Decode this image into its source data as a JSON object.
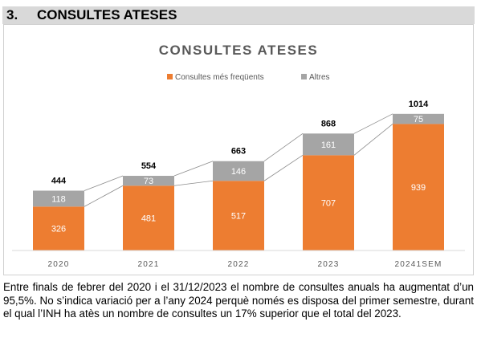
{
  "section": {
    "number": "3.",
    "title": "CONSULTES ATESES"
  },
  "chart_data": {
    "type": "bar",
    "stacked": true,
    "title": "CONSULTES ATESES",
    "categories": [
      "2020",
      "2021",
      "2022",
      "2023",
      "20241SEM"
    ],
    "series": [
      {
        "name": "Consultes més freqüents",
        "color": "#ed7d31",
        "values": [
          326,
          481,
          517,
          707,
          939
        ]
      },
      {
        "name": "Altres",
        "color": "#a5a5a5",
        "values": [
          118,
          73,
          146,
          161,
          75
        ]
      }
    ],
    "totals": [
      "444",
      "554",
      "663",
      "868",
      "1014"
    ],
    "ylim": [
      0,
      1150
    ],
    "grid": false,
    "legend": "top",
    "xlabel": "",
    "ylabel": ""
  },
  "body_text": "Entre finals de febrer del 2020 i el 31/12/2023 el nombre de consultes anuals ha augmentat d’un 95,5%. No s’indica variació per a l’any 2024 perquè només es disposa del primer semestre, durant el qual l’INH ha atès un nombre de consultes un 17% superior que el total del 2023."
}
